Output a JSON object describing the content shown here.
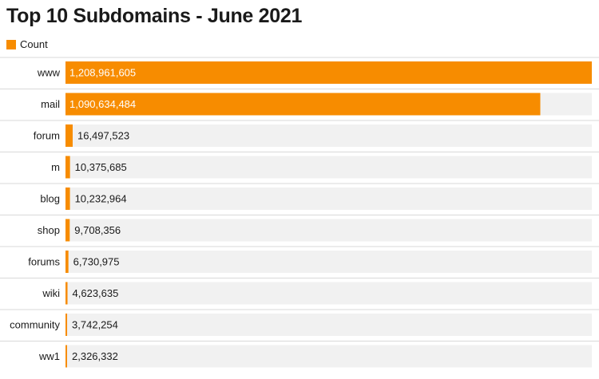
{
  "chart_data": {
    "type": "bar",
    "orientation": "horizontal",
    "title": "Top 10 Subdomains - June 2021",
    "categories": [
      "www",
      "mail",
      "forum",
      "m",
      "blog",
      "shop",
      "forums",
      "wiki",
      "community",
      "ww1"
    ],
    "series": [
      {
        "name": "Count",
        "values": [
          1208961605,
          1090634484,
          16497523,
          10375685,
          10232964,
          9708356,
          6730975,
          4623635,
          3742254,
          2326332
        ]
      }
    ],
    "value_labels": [
      "1,208,961,605",
      "1,090,634,484",
      "16,497,523",
      "10,375,685",
      "10,232,964",
      "9,708,356",
      "6,730,975",
      "4,623,635",
      "3,742,254",
      "2,326,332"
    ],
    "xlabel": "",
    "ylabel": "",
    "xlim": [
      0,
      1208961605
    ],
    "grid": false,
    "legend_position": "top-left",
    "colors": {
      "bar": "#f78c00",
      "track": "#f1f1f1",
      "row_divider": "#d9d9d9",
      "label_on_bar": "#ffffff",
      "label_off_bar": "#1a1a1a"
    }
  }
}
